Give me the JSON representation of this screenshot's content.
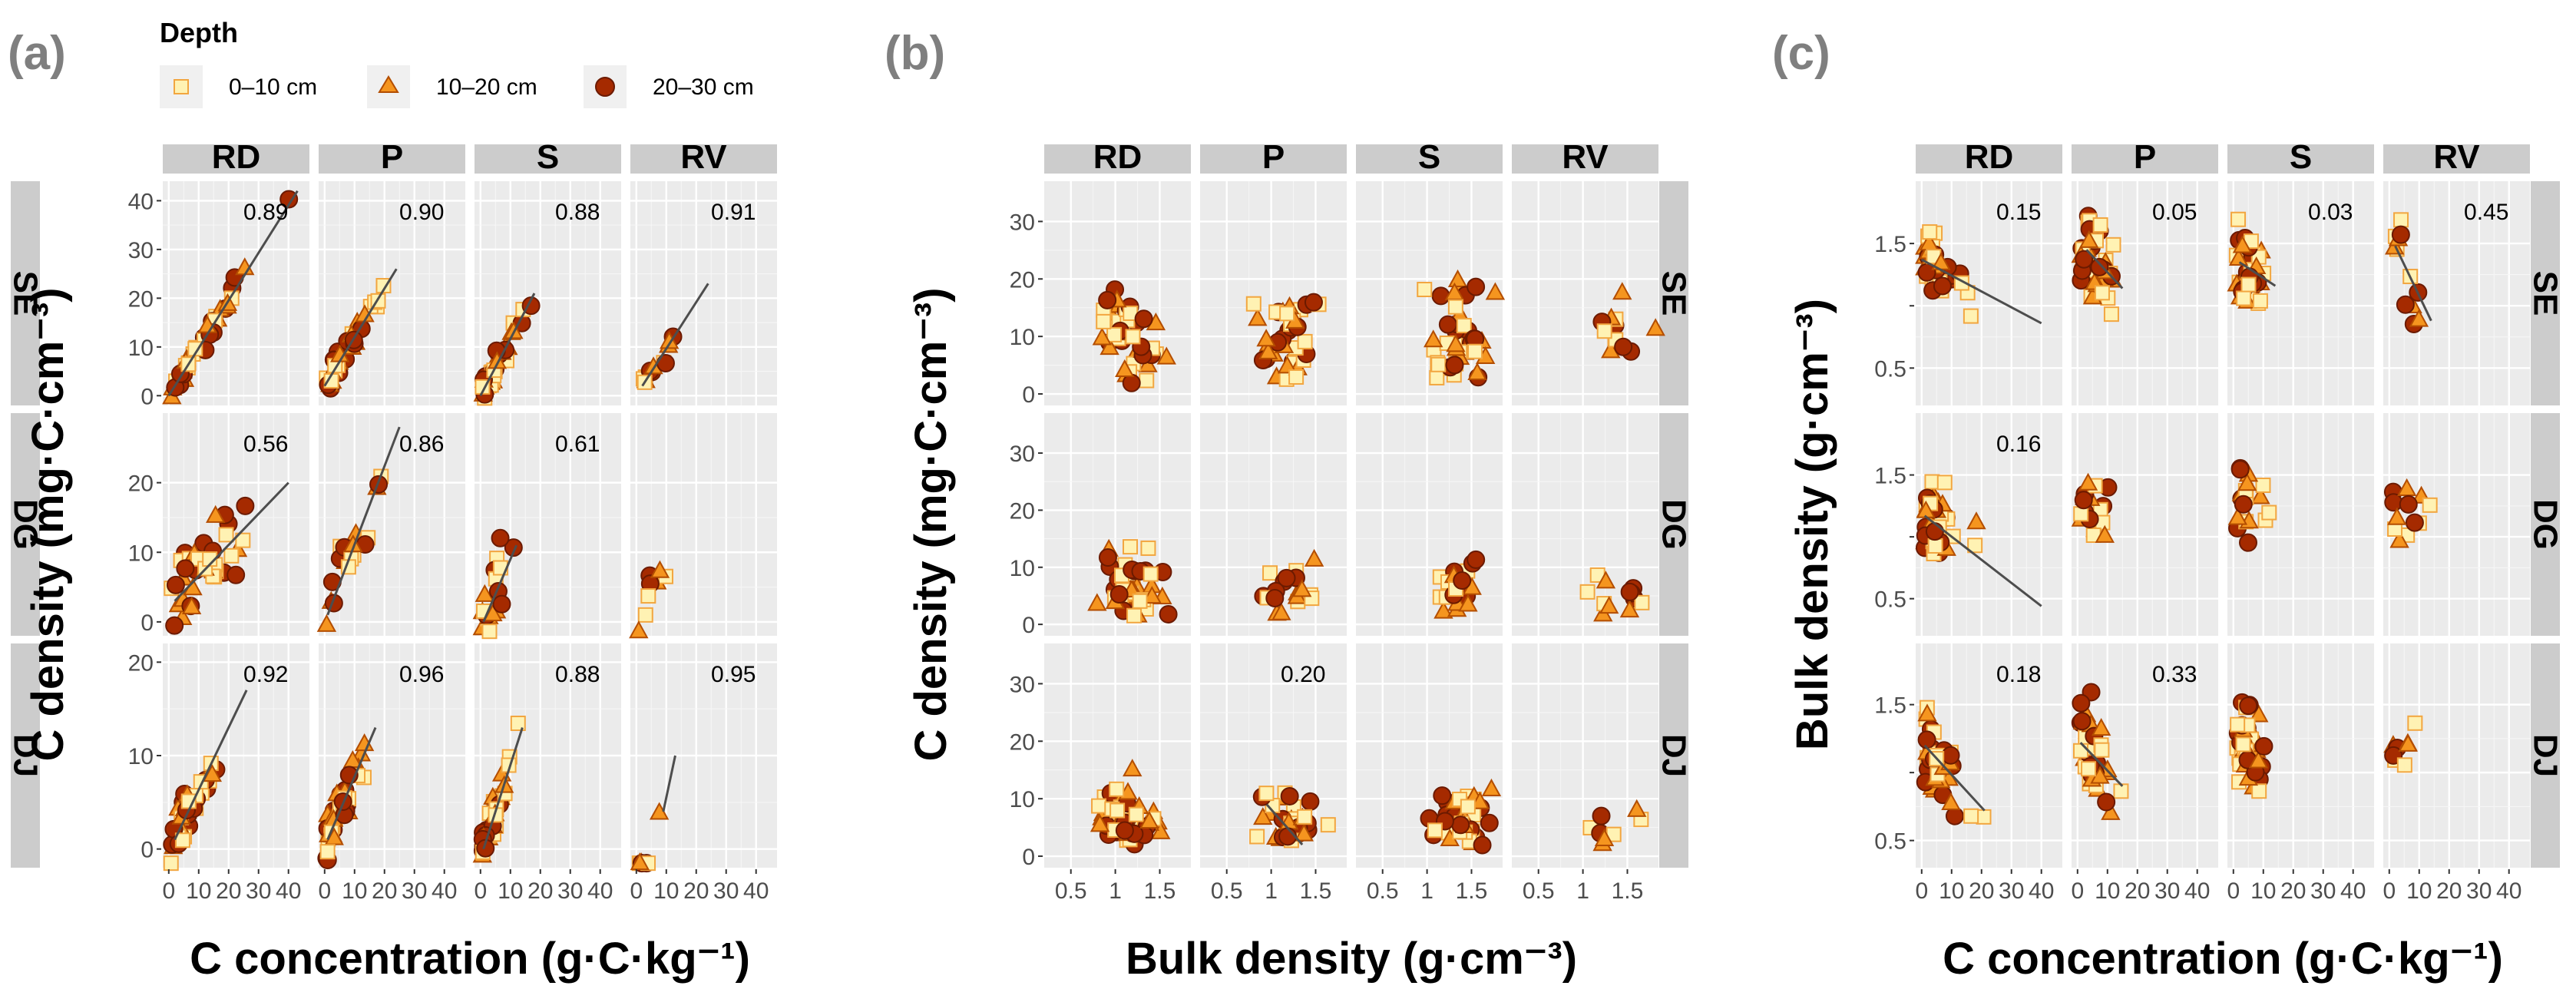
{
  "legend": {
    "title": "Depth",
    "items": [
      {
        "label": "0–10 cm",
        "shape": "square",
        "fill": "#fff2b3",
        "stroke": "#f2a640"
      },
      {
        "label": "10–20 cm",
        "shape": "triangle",
        "fill": "#f5951f",
        "stroke": "#b34d00"
      },
      {
        "label": "20–30 cm",
        "shape": "circle",
        "fill": "#a52a00",
        "stroke": "#6b1a00"
      }
    ]
  },
  "strip_colors": {
    "strip": "#cccccc",
    "panel": "#ebebeb",
    "grid": "#ffffff",
    "fit_line": "#4d4d4d"
  },
  "chart_data": [
    {
      "id": "a",
      "panel_label": "(a)",
      "type": "scatter",
      "xlabel": "C concentration (g·C·kg⁻¹)",
      "ylabel": "C density (mg·C·cm⁻³)",
      "columns": [
        "RD",
        "P",
        "S",
        "RV"
      ],
      "rows": [
        "SE",
        "DG",
        "DJ"
      ],
      "xlim": [
        -2,
        47
      ],
      "ylim": [
        [
          -2,
          44
        ],
        [
          -2,
          30
        ],
        [
          -2,
          22
        ]
      ],
      "xticks": [
        0,
        10,
        20,
        30,
        40
      ],
      "yticks": [
        [
          0,
          10,
          20,
          30,
          40
        ],
        [
          0,
          10,
          20
        ],
        [
          0,
          10,
          20
        ]
      ],
      "r2": [
        [
          "0.89",
          "0.90",
          "0.88",
          "0.91"
        ],
        [
          "0.56",
          "0.86",
          "0.61",
          ""
        ],
        [
          "0.92",
          "0.96",
          "0.88",
          "0.95"
        ]
      ],
      "fits": [
        [
          [
            0,
            0,
            43,
            42
          ],
          [
            0,
            2,
            24,
            26
          ],
          [
            0,
            0,
            18,
            21
          ],
          [
            2,
            2,
            24,
            23
          ]
        ],
        [
          [
            2,
            3,
            40,
            20
          ],
          [
            1,
            1,
            25,
            28
          ],
          [
            1,
            0,
            12,
            11
          ],
          null
        ],
        [
          [
            2,
            1,
            26,
            17
          ],
          [
            1,
            1,
            17,
            13
          ],
          [
            1,
            0,
            14,
            13
          ],
          [
            9,
            4,
            13,
            10
          ]
        ]
      ]
    },
    {
      "id": "b",
      "panel_label": "(b)",
      "type": "scatter",
      "xlabel": "Bulk density (g·cm⁻³)",
      "ylabel": "C density (mg·C·cm⁻³)",
      "columns": [
        "RD",
        "P",
        "S",
        "RV"
      ],
      "rows": [
        "SE",
        "DG",
        "DJ"
      ],
      "xlim": [
        0.2,
        1.85
      ],
      "ylim": [
        [
          -2,
          37
        ],
        [
          -2,
          37
        ],
        [
          -2,
          37
        ]
      ],
      "xticks": [
        0.5,
        1.0,
        1.5
      ],
      "yticks": [
        [
          0,
          10,
          20,
          30
        ],
        [
          0,
          10,
          20,
          30
        ],
        [
          0,
          10,
          20,
          30
        ]
      ],
      "r2": [
        [
          "",
          "",
          "",
          ""
        ],
        [
          "",
          "",
          "",
          ""
        ],
        [
          "",
          "0.20",
          "",
          ""
        ]
      ],
      "fits": [
        [
          null,
          null,
          null,
          null
        ],
        [
          null,
          null,
          null,
          null
        ],
        [
          null,
          [
            0.95,
            9,
            1.35,
            2
          ],
          null,
          null
        ]
      ]
    },
    {
      "id": "c",
      "panel_label": "(c)",
      "type": "scatter",
      "xlabel": "C concentration (g·C·kg⁻¹)",
      "ylabel": "Bulk density (g·cm⁻³)",
      "columns": [
        "RD",
        "P",
        "S",
        "RV"
      ],
      "rows": [
        "SE",
        "DG",
        "DJ"
      ],
      "xlim": [
        -2,
        47
      ],
      "ylim": [
        [
          0.2,
          2.0
        ],
        [
          0.2,
          2.0
        ],
        [
          0.3,
          1.95
        ]
      ],
      "xticks": [
        0,
        10,
        20,
        30,
        40
      ],
      "yticks": [
        [
          0.5,
          1.0,
          1.5
        ],
        [
          0.5,
          1.0,
          1.5
        ],
        [
          0.5,
          1.0,
          1.5
        ]
      ],
      "ytick_labels": [
        "0.5",
        "",
        "1.5"
      ],
      "r2": [
        [
          "0.15",
          "0.05",
          "0.03",
          "0.45"
        ],
        [
          "0.16",
          "",
          "",
          ""
        ],
        [
          "0.18",
          "0.33",
          "",
          ""
        ]
      ],
      "fits": [
        [
          [
            0,
            1.37,
            40,
            0.86
          ],
          [
            3,
            1.45,
            15,
            1.14
          ],
          [
            2,
            1.35,
            14,
            1.16
          ],
          [
            2,
            1.48,
            14,
            0.88
          ]
        ],
        [
          [
            1,
            1.17,
            40,
            0.44
          ],
          null,
          null,
          null
        ],
        [
          [
            1,
            1.2,
            21,
            0.72
          ],
          [
            1,
            1.22,
            15,
            0.9
          ],
          null,
          null
        ]
      ]
    }
  ]
}
